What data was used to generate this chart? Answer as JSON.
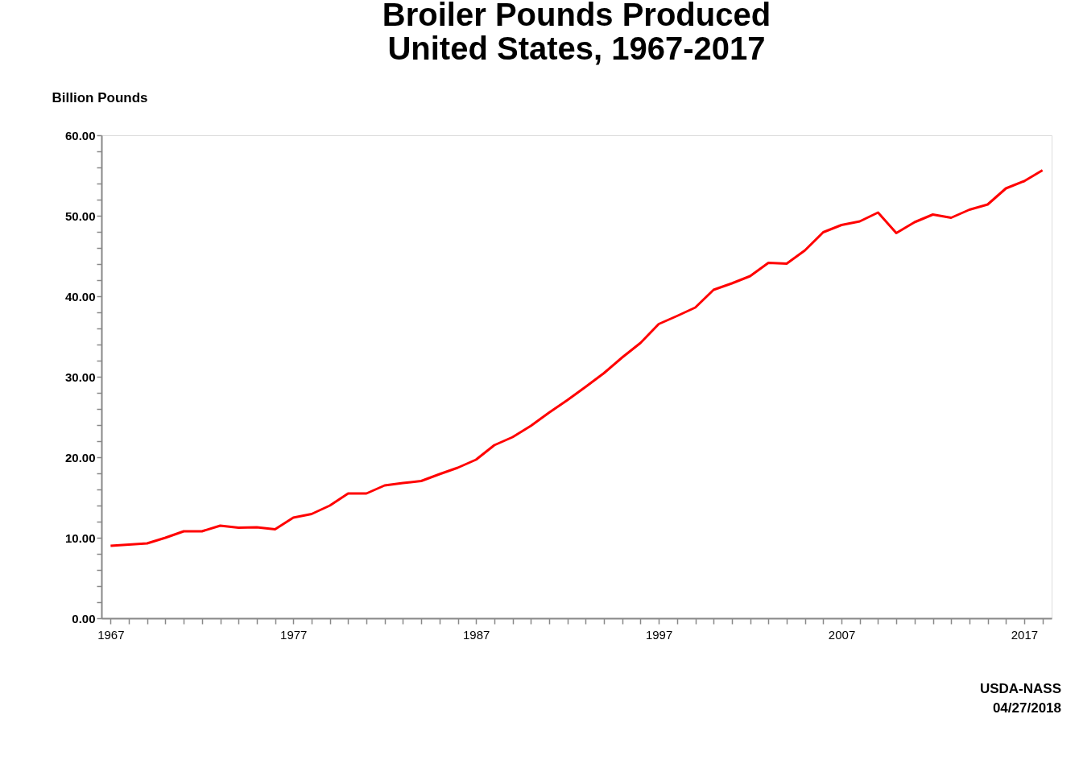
{
  "chart_data": {
    "type": "line",
    "title": "Broiler Pounds Produced\nUnited States, 1967-2017",
    "ylabel": "Billion Pounds",
    "annotations": [
      "USDA-NASS",
      "04/27/2018"
    ],
    "x": [
      1967,
      1968,
      1969,
      1970,
      1971,
      1972,
      1973,
      1974,
      1975,
      1976,
      1977,
      1978,
      1979,
      1980,
      1981,
      1982,
      1983,
      1984,
      1985,
      1986,
      1987,
      1988,
      1989,
      1990,
      1991,
      1992,
      1993,
      1994,
      1995,
      1996,
      1997,
      1998,
      1999,
      2000,
      2001,
      2002,
      2003,
      2004,
      2005,
      2006,
      2007,
      2008,
      2009,
      2010,
      2011,
      2012,
      2013,
      2014,
      2015,
      2016,
      2017,
      2018
    ],
    "series": [
      {
        "color": "#ff0000",
        "values": [
          9.0,
          9.15,
          9.3,
          10.0,
          10.8,
          10.8,
          11.5,
          11.25,
          11.3,
          11.05,
          12.5,
          12.95,
          14.0,
          15.5,
          15.5,
          16.5,
          16.8,
          17.05,
          17.9,
          18.7,
          19.7,
          21.5,
          22.5,
          23.9,
          25.55,
          27.1,
          28.75,
          30.45,
          32.4,
          34.2,
          36.55,
          37.55,
          38.6,
          40.8,
          41.6,
          42.5,
          44.15,
          44.05,
          45.7,
          47.95,
          48.85,
          49.3,
          50.4,
          47.85,
          49.2,
          50.15,
          49.75,
          50.75,
          51.4,
          53.4,
          54.3,
          55.65
        ]
      }
    ],
    "xlim": [
      1966.5,
      2018.5
    ],
    "xticks": [
      1967,
      {
        "value": 1968,
        "label": null
      },
      {
        "value": 1969,
        "label": null
      },
      {
        "value": 1970,
        "label": null
      },
      {
        "value": 1971,
        "label": null
      },
      {
        "value": 1972,
        "label": null
      },
      {
        "value": 1973,
        "label": null
      },
      {
        "value": 1974,
        "label": null
      },
      {
        "value": 1975,
        "label": null
      },
      {
        "value": 1976,
        "label": null
      },
      1977,
      {
        "value": 1978,
        "label": null
      },
      {
        "value": 1979,
        "label": null
      },
      {
        "value": 1980,
        "label": null
      },
      {
        "value": 1981,
        "label": null
      },
      {
        "value": 1982,
        "label": null
      },
      {
        "value": 1983,
        "label": null
      },
      {
        "value": 1984,
        "label": null
      },
      {
        "value": 1985,
        "label": null
      },
      {
        "value": 1986,
        "label": null
      },
      1987,
      {
        "value": 1988,
        "label": null
      },
      {
        "value": 1989,
        "label": null
      },
      {
        "value": 1990,
        "label": null
      },
      {
        "value": 1991,
        "label": null
      },
      {
        "value": 1992,
        "label": null
      },
      {
        "value": 1993,
        "label": null
      },
      {
        "value": 1994,
        "label": null
      },
      {
        "value": 1995,
        "label": null
      },
      {
        "value": 1996,
        "label": null
      },
      1997,
      {
        "value": 1998,
        "label": null
      },
      {
        "value": 1999,
        "label": null
      },
      {
        "value": 2000,
        "label": null
      },
      {
        "value": 2001,
        "label": null
      },
      {
        "value": 2002,
        "label": null
      },
      {
        "value": 2003,
        "label": null
      },
      {
        "value": 2004,
        "label": null
      },
      {
        "value": 2005,
        "label": null
      },
      {
        "value": 2006,
        "label": null
      },
      2007,
      {
        "value": 2008,
        "label": null
      },
      {
        "value": 2009,
        "label": null
      },
      {
        "value": 2010,
        "label": null
      },
      {
        "value": 2011,
        "label": null
      },
      {
        "value": 2012,
        "label": null
      },
      {
        "value": 2013,
        "label": null
      },
      {
        "value": 2014,
        "label": null
      },
      {
        "value": 2015,
        "label": null
      },
      {
        "value": 2016,
        "label": null
      },
      2017,
      {
        "value": 2018,
        "label": null
      }
    ],
    "ylim": [
      0,
      60
    ],
    "yticks": [
      {
        "value": 0,
        "label": "0.00"
      },
      {
        "value": 2,
        "label": null
      },
      {
        "value": 4,
        "label": null
      },
      {
        "value": 6,
        "label": null
      },
      {
        "value": 8,
        "label": null
      },
      {
        "value": 10,
        "label": "10.00"
      },
      {
        "value": 12,
        "label": null
      },
      {
        "value": 14,
        "label": null
      },
      {
        "value": 16,
        "label": null
      },
      {
        "value": 18,
        "label": null
      },
      {
        "value": 20,
        "label": "20.00"
      },
      {
        "value": 22,
        "label": null
      },
      {
        "value": 24,
        "label": null
      },
      {
        "value": 26,
        "label": null
      },
      {
        "value": 28,
        "label": null
      },
      {
        "value": 30,
        "label": "30.00"
      },
      {
        "value": 32,
        "label": null
      },
      {
        "value": 34,
        "label": null
      },
      {
        "value": 36,
        "label": null
      },
      {
        "value": 38,
        "label": null
      },
      {
        "value": 40,
        "label": "40.00"
      },
      {
        "value": 42,
        "label": null
      },
      {
        "value": 44,
        "label": null
      },
      {
        "value": 46,
        "label": null
      },
      {
        "value": 48,
        "label": null
      },
      {
        "value": 50,
        "label": "50.00"
      },
      {
        "value": 52,
        "label": null
      },
      {
        "value": 54,
        "label": null
      },
      {
        "value": 56,
        "label": null
      },
      {
        "value": 58,
        "label": null
      },
      {
        "value": 60,
        "label": "60.00"
      }
    ],
    "grid": false,
    "line_style": "solid"
  }
}
